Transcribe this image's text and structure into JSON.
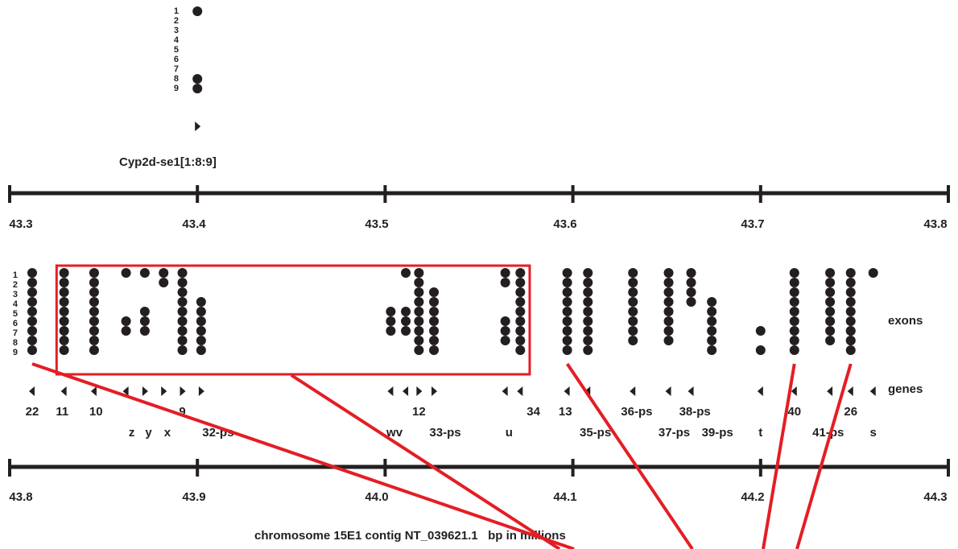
{
  "colors": {
    "ink": "#231f20",
    "highlight": "#e31e24"
  },
  "top_panel": {
    "gene": {
      "label": "Cyp2d-se1[1:8:9]",
      "exons": [
        1,
        8,
        9
      ],
      "strand": "+"
    },
    "exon_numbers": [
      "1",
      "2",
      "3",
      "4",
      "5",
      "6",
      "7",
      "8",
      "9"
    ],
    "axis": {
      "ticks": [
        "43.3",
        "43.4",
        "43.5",
        "43.6",
        "43.7",
        "43.8"
      ]
    }
  },
  "bottom_panel": {
    "exon_numbers": [
      "1",
      "2",
      "3",
      "4",
      "5",
      "6",
      "7",
      "8",
      "9"
    ],
    "row_labels": {
      "exons": "exons",
      "genes": "genes"
    },
    "axis": {
      "ticks": [
        "43.8",
        "43.9",
        "44.0",
        "44.1",
        "44.2",
        "44.3"
      ]
    },
    "genes": [
      {
        "pos": 43.812,
        "exons": [
          1,
          2,
          3,
          4,
          5,
          6,
          7,
          8,
          9
        ],
        "strand": "-"
      },
      {
        "pos": 43.829,
        "exons": [
          1,
          2,
          3,
          4,
          5,
          6,
          7,
          8,
          9
        ],
        "strand": "-"
      },
      {
        "pos": 43.845,
        "exons": [
          1,
          2,
          3,
          4,
          5,
          6,
          7,
          8,
          9
        ],
        "strand": "-"
      },
      {
        "pos": 43.862,
        "exons": [
          1,
          6,
          7
        ],
        "strand": "-"
      },
      {
        "pos": 43.872,
        "exons": [
          1,
          5,
          6,
          7
        ],
        "strand": "+"
      },
      {
        "pos": 43.882,
        "exons": [
          1,
          2
        ],
        "strand": "+"
      },
      {
        "pos": 43.892,
        "exons": [
          1,
          2,
          3,
          4,
          5,
          6,
          7,
          8,
          9
        ],
        "strand": "+"
      },
      {
        "pos": 43.902,
        "exons": [
          4,
          5,
          6,
          7,
          8,
          9
        ],
        "strand": "+"
      },
      {
        "pos": 44.003,
        "exons": [
          5,
          6,
          7
        ],
        "strand": "-"
      },
      {
        "pos": 44.011,
        "exons": [
          1,
          5,
          6,
          7
        ],
        "strand": "-"
      },
      {
        "pos": 44.018,
        "exons": [
          1,
          2,
          3,
          4,
          5,
          6,
          7,
          8,
          9
        ],
        "strand": "+"
      },
      {
        "pos": 44.026,
        "exons": [
          3,
          4,
          5,
          6,
          7,
          8,
          9
        ],
        "strand": "+"
      },
      {
        "pos": 44.064,
        "exons": [
          1,
          2,
          6,
          7,
          8
        ],
        "strand": "-"
      },
      {
        "pos": 44.072,
        "exons": [
          1,
          2,
          3,
          4,
          5,
          6,
          7,
          8,
          9
        ],
        "strand": "-"
      },
      {
        "pos": 44.097,
        "exons": [
          1,
          2,
          3,
          4,
          5,
          6,
          7,
          8,
          9
        ],
        "strand": "-"
      },
      {
        "pos": 44.108,
        "exons": [
          1,
          2,
          3,
          4,
          5,
          6,
          7,
          8,
          9
        ],
        "strand": "-"
      },
      {
        "pos": 44.132,
        "exons": [
          1,
          2,
          3,
          4,
          5,
          6,
          7,
          8
        ],
        "strand": "-"
      },
      {
        "pos": 44.151,
        "exons": [
          1,
          2,
          3,
          4,
          5,
          6,
          7,
          8
        ],
        "strand": "-"
      },
      {
        "pos": 44.163,
        "exons": [
          1,
          2,
          3,
          4
        ],
        "strand": "-"
      },
      {
        "pos": 44.174,
        "exons": [
          4,
          5,
          6,
          7,
          8,
          9
        ],
        "strand": null
      },
      {
        "pos": 44.2,
        "exons": [
          7,
          9
        ],
        "strand": "-"
      },
      {
        "pos": 44.218,
        "exons": [
          1,
          2,
          3,
          4,
          5,
          6,
          7,
          8,
          9
        ],
        "strand": "-"
      },
      {
        "pos": 44.237,
        "exons": [
          1,
          2,
          3,
          4,
          5,
          6,
          7,
          8
        ],
        "strand": "-"
      },
      {
        "pos": 44.248,
        "exons": [
          1,
          2,
          3,
          4,
          5,
          6,
          7,
          8,
          9
        ],
        "strand": "-"
      },
      {
        "pos": 44.248,
        "exons": [
          7,
          8
        ],
        "strand": null
      },
      {
        "pos": 44.26,
        "exons": [
          1
        ],
        "strand": "-"
      }
    ],
    "gene_labels": [
      {
        "text": "22",
        "pos": 43.812,
        "row": 1
      },
      {
        "text": "11",
        "pos": 43.828,
        "row": 1
      },
      {
        "text": "10",
        "pos": 43.846,
        "row": 1
      },
      {
        "text": "9",
        "pos": 43.892,
        "row": 1
      },
      {
        "text": "12",
        "pos": 44.018,
        "row": 1
      },
      {
        "text": "34",
        "pos": 44.079,
        "row": 1
      },
      {
        "text": "13",
        "pos": 44.096,
        "row": 1
      },
      {
        "text": "36-ps",
        "pos": 44.134,
        "row": 1
      },
      {
        "text": "38-ps",
        "pos": 44.165,
        "row": 1
      },
      {
        "text": "40",
        "pos": 44.218,
        "row": 1
      },
      {
        "text": "26",
        "pos": 44.248,
        "row": 1
      },
      {
        "text": "z",
        "pos": 43.865,
        "row": 2
      },
      {
        "text": "y",
        "pos": 43.874,
        "row": 2
      },
      {
        "text": "x",
        "pos": 43.884,
        "row": 2
      },
      {
        "text": "32-ps",
        "pos": 43.911,
        "row": 2
      },
      {
        "text": "wv",
        "pos": 44.005,
        "row": 2
      },
      {
        "text": "33-ps",
        "pos": 44.032,
        "row": 2
      },
      {
        "text": "u",
        "pos": 44.066,
        "row": 2
      },
      {
        "text": "35-ps",
        "pos": 44.112,
        "row": 2
      },
      {
        "text": "37-ps",
        "pos": 44.154,
        "row": 2
      },
      {
        "text": "39-ps",
        "pos": 44.177,
        "row": 2
      },
      {
        "text": "t",
        "pos": 44.2,
        "row": 2
      },
      {
        "text": "41-ps",
        "pos": 44.236,
        "row": 2
      },
      {
        "text": "s",
        "pos": 44.26,
        "row": 2
      }
    ],
    "highlight_box": {
      "from": 43.825,
      "to": 44.077
    },
    "connectors": [
      {
        "from": {
          "pos": 43.812,
          "exon": 9
        },
        "to": {
          "pos": 44.08,
          "exon": 9
        }
      },
      {
        "from": {
          "pos": 43.95,
          "exon": 9
        },
        "to": {
          "pos": 44.08,
          "exon": 9
        }
      },
      {
        "from": {
          "pos": 44.097,
          "exon": 9
        },
        "to": {
          "pos": 44.08,
          "exon": 9
        }
      },
      {
        "from": {
          "pos": 44.218,
          "exon": 9
        },
        "to": {
          "pos": 44.08,
          "exon": 9
        }
      },
      {
        "from": {
          "pos": 44.248,
          "exon": 9
        },
        "to": {
          "pos": 44.08,
          "exon": 9
        }
      }
    ],
    "caption": "chromosome 15E1 contig NT_039621.1   bp in millions"
  }
}
